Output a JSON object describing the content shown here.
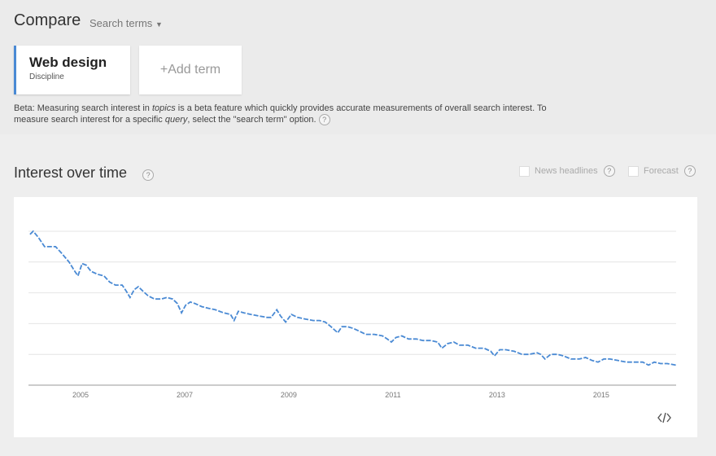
{
  "header": {
    "title": "Compare",
    "dropdown": "Search terms"
  },
  "terms": [
    {
      "name": "Web design",
      "type": "Discipline"
    }
  ],
  "add_term": "+Add term",
  "beta_note": [
    "Beta: Measuring search interest in ",
    "topics",
    " is a beta feature which quickly provides accurate measurements of overall search interest. To measure search interest for a specific ",
    "query",
    ", select the \"search term\" option."
  ],
  "help_icon": "?",
  "panel": {
    "title": "Interest over time",
    "options": [
      "News headlines",
      "Forecast"
    ]
  },
  "chart_data": {
    "type": "line",
    "color": "#4a8ad4",
    "x": [
      2004.03,
      2004.09,
      2004.19,
      2004.31,
      2004.52,
      2004.63,
      2004.78,
      2004.89,
      2004.95,
      2005.03,
      2005.11,
      2005.2,
      2005.33,
      2005.45,
      2005.56,
      2005.67,
      2005.8,
      2005.88,
      2005.95,
      2006.03,
      2006.11,
      2006.2,
      2006.3,
      2006.42,
      2006.55,
      2006.66,
      2006.77,
      2006.86,
      2006.94,
      2007.02,
      2007.11,
      2007.2,
      2007.33,
      2007.45,
      2007.59,
      2007.75,
      2007.88,
      2007.95,
      2008.03,
      2008.14,
      2008.27,
      2008.42,
      2008.58,
      2008.66,
      2008.77,
      2008.84,
      2008.94,
      2009.05,
      2009.17,
      2009.31,
      2009.47,
      2009.59,
      2009.7,
      2009.81,
      2009.94,
      2010.02,
      2010.13,
      2010.23,
      2010.36,
      2010.48,
      2010.64,
      2010.8,
      2010.89,
      2010.97,
      2011.06,
      2011.17,
      2011.3,
      2011.45,
      2011.58,
      2011.73,
      2011.86,
      2011.94,
      2012.05,
      2012.17,
      2012.28,
      2012.44,
      2012.59,
      2012.75,
      2012.88,
      2012.95,
      2013.05,
      2013.17,
      2013.33,
      2013.48,
      2013.61,
      2013.77,
      2013.84,
      2013.92,
      2014.03,
      2014.16,
      2014.28,
      2014.42,
      2014.58,
      2014.7,
      2014.83,
      2014.94,
      2015.05,
      2015.17,
      2015.33,
      2015.48,
      2015.64,
      2015.8,
      2015.91,
      2016.02,
      2016.14,
      2016.27,
      2016.44
    ],
    "values": [
      98,
      100,
      96,
      90,
      90,
      86,
      80,
      74,
      71,
      79,
      78,
      74,
      72,
      71,
      67,
      65,
      65,
      61,
      57,
      62,
      64,
      61,
      58,
      56,
      56,
      57,
      56,
      53,
      47,
      52,
      54,
      53,
      51,
      50,
      49,
      47,
      46,
      42,
      48,
      47,
      46,
      45,
      44,
      44,
      49,
      45,
      41,
      46,
      44,
      43,
      42,
      42,
      41,
      38,
      34,
      38,
      38,
      37,
      35,
      33,
      33,
      32,
      30,
      28,
      31,
      32,
      30,
      30,
      29,
      29,
      28,
      24,
      27,
      28,
      26,
      26,
      24,
      24,
      22,
      19,
      23,
      23,
      22,
      20,
      20,
      21,
      20,
      17,
      20,
      20,
      19,
      17,
      17,
      18,
      16,
      15,
      17,
      17,
      16,
      15,
      15,
      15,
      13,
      15,
      14,
      14,
      13
    ],
    "xlim": [
      2004,
      2016.44
    ],
    "xticks": [
      2005,
      2007,
      2009,
      2011,
      2013,
      2015
    ],
    "ylim": [
      0,
      100
    ],
    "yticks": [
      0,
      20,
      40,
      60,
      80,
      100
    ],
    "grid": true
  }
}
